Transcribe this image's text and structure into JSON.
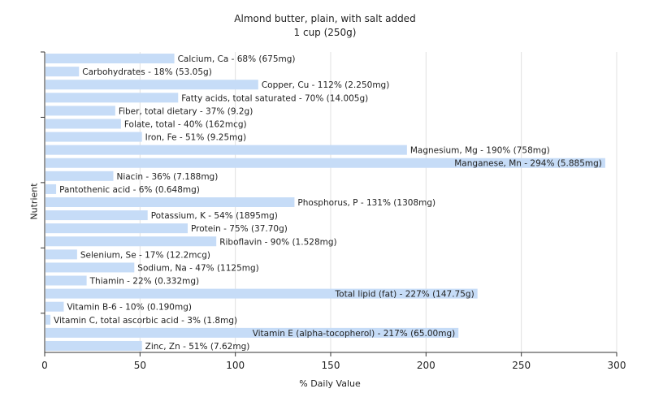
{
  "chart_data": {
    "type": "bar",
    "orientation": "horizontal",
    "title": "Almond butter, plain, with salt added",
    "subtitle": "1 cup (250g)",
    "xlabel": "% Daily Value",
    "ylabel": "Nutrient",
    "xlim": [
      0,
      300
    ],
    "xticks": [
      0,
      50,
      100,
      150,
      200,
      250,
      300
    ],
    "grid": true,
    "bar_color": "#c6dcf7",
    "grid_color": "#e0e0e0",
    "axis_color": "#333333",
    "categories": [
      "Calcium, Ca",
      "Carbohydrates",
      "Copper, Cu",
      "Fatty acids, total saturated",
      "Fiber, total dietary",
      "Folate, total",
      "Iron, Fe",
      "Magnesium, Mg",
      "Manganese, Mn",
      "Niacin",
      "Pantothenic acid",
      "Phosphorus, P",
      "Potassium, K",
      "Protein",
      "Riboflavin",
      "Selenium, Se",
      "Sodium, Na",
      "Thiamin",
      "Total lipid (fat)",
      "Vitamin B-6",
      "Vitamin C, total ascorbic acid",
      "Vitamin E (alpha-tocopherol)",
      "Zinc, Zn"
    ],
    "values": [
      68,
      18,
      112,
      70,
      37,
      40,
      51,
      190,
      294,
      36,
      6,
      131,
      54,
      75,
      90,
      17,
      47,
      22,
      227,
      10,
      3,
      217,
      51
    ],
    "labels": [
      "Calcium, Ca - 68% (675mg)",
      "Carbohydrates - 18% (53.05g)",
      "Copper, Cu - 112% (2.250mg)",
      "Fatty acids, total saturated - 70% (14.005g)",
      "Fiber, total dietary - 37% (9.2g)",
      "Folate, total - 40% (162mcg)",
      "Iron, Fe - 51% (9.25mg)",
      "Magnesium, Mg - 190% (758mg)",
      "Manganese, Mn - 294% (5.885mg)",
      "Niacin - 36% (7.188mg)",
      "Pantothenic acid - 6% (0.648mg)",
      "Phosphorus, P - 131% (1308mg)",
      "Potassium, K - 54% (1895mg)",
      "Protein - 75% (37.70g)",
      "Riboflavin - 90% (1.528mg)",
      "Selenium, Se - 17% (12.2mcg)",
      "Sodium, Na - 47% (1125mg)",
      "Thiamin - 22% (0.332mg)",
      "Total lipid (fat) - 227% (147.75g)",
      "Vitamin B-6 - 10% (0.190mg)",
      "Vitamin C, total ascorbic acid - 3% (1.8mg)",
      "Vitamin E (alpha-tocopherol) - 217% (65.00mg)",
      "Zinc, Zn - 51% (7.62mg)"
    ]
  }
}
